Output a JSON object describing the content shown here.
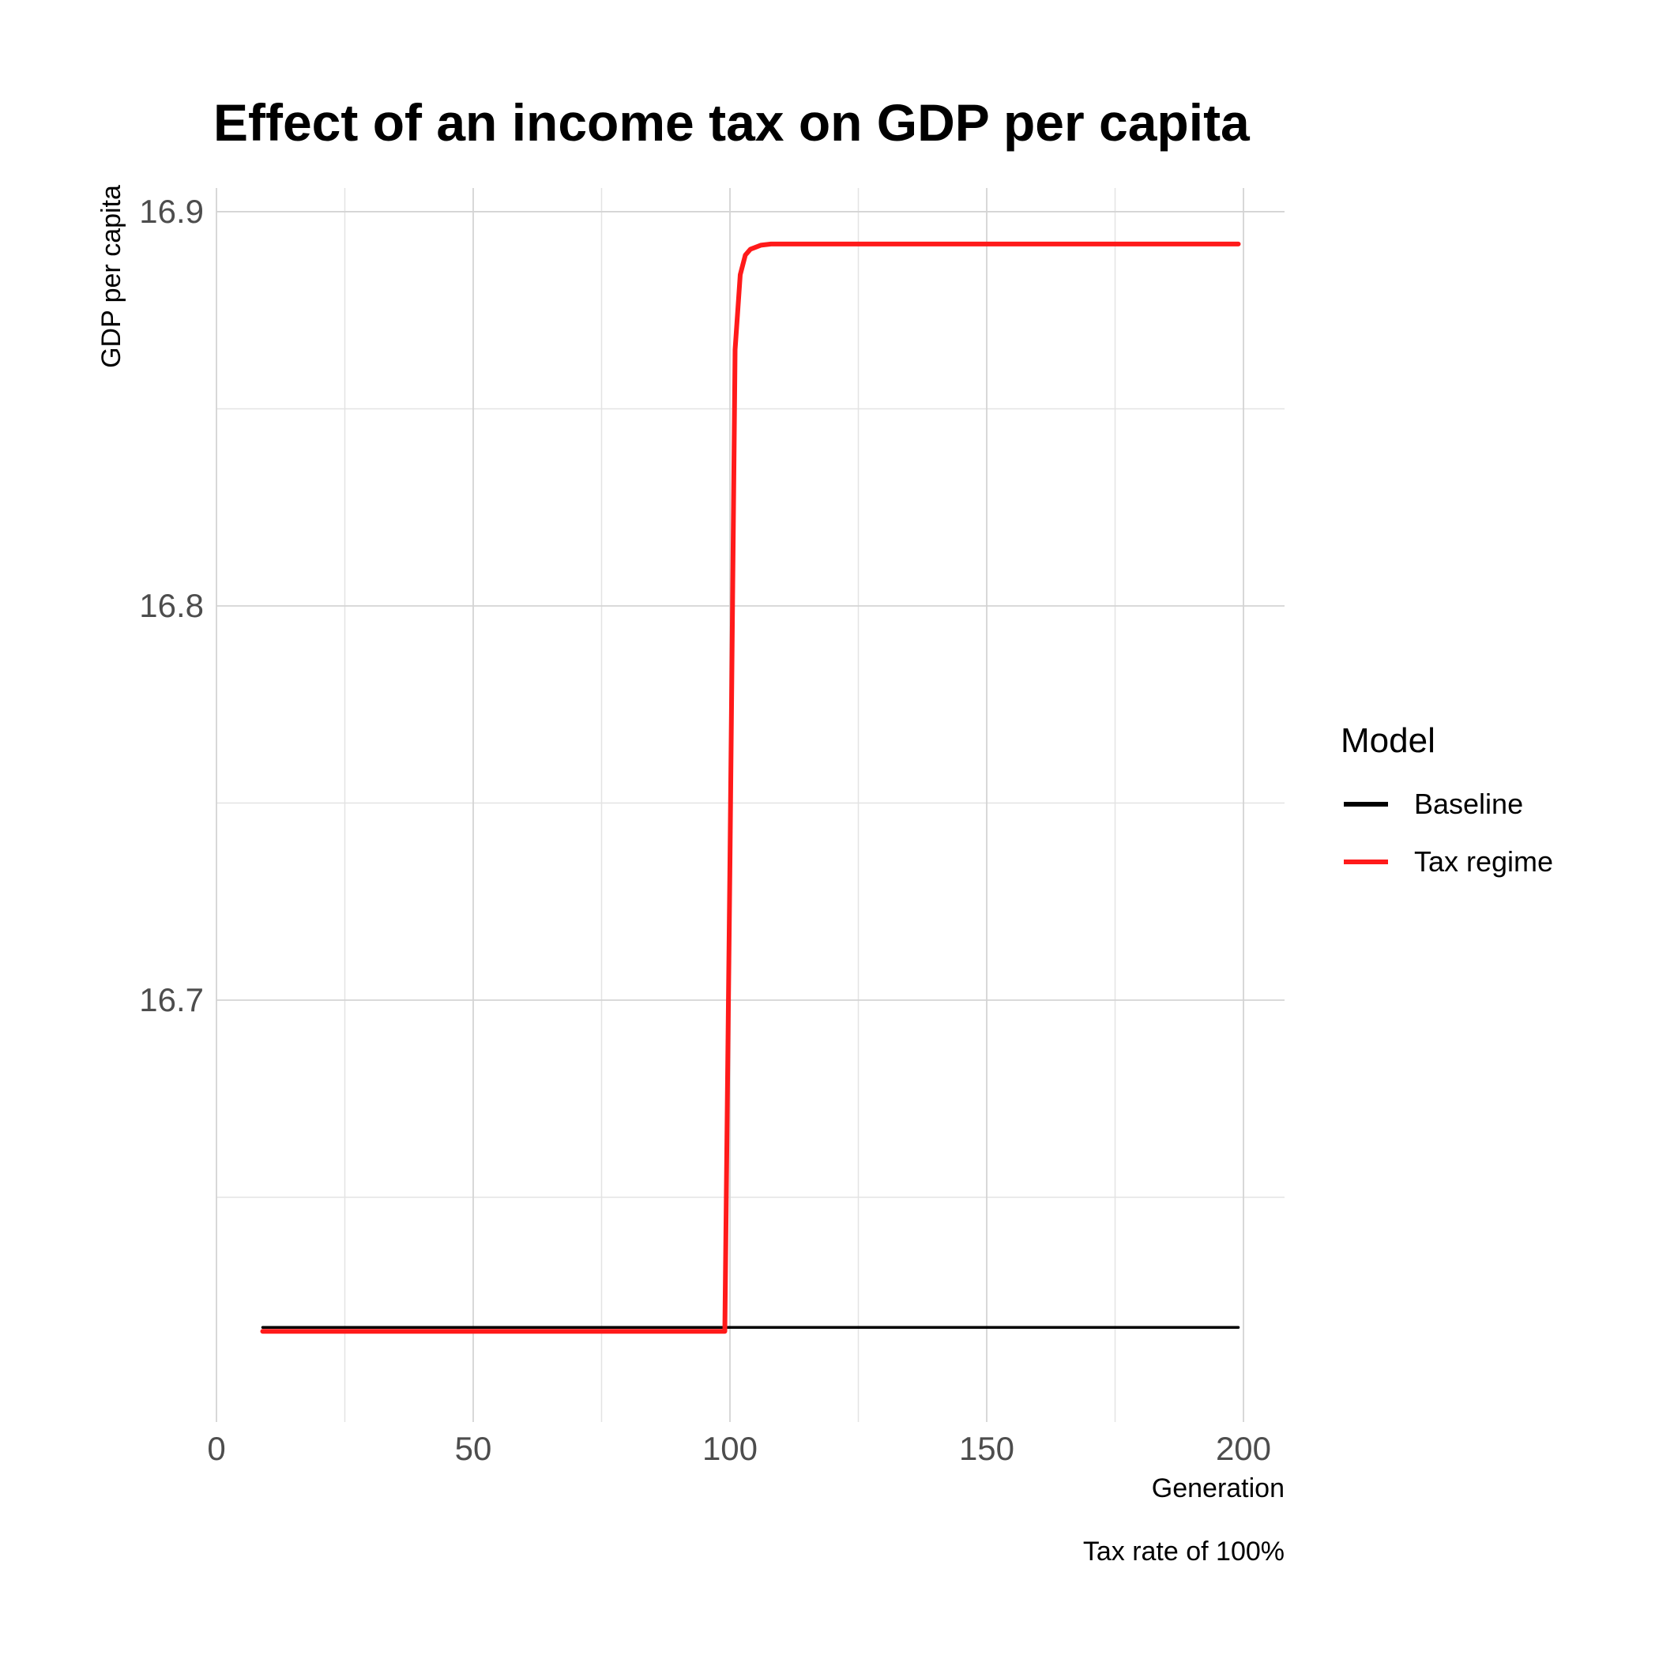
{
  "chart_data": {
    "type": "line",
    "title": "Effect of an income tax on GDP per capita",
    "xlabel": "Generation",
    "ylabel": "GDP per capita",
    "caption": "Tax rate of 100%",
    "xlim": [
      0,
      208
    ],
    "ylim": [
      16.593,
      16.906
    ],
    "x_ticks": [
      0,
      50,
      100,
      150,
      200
    ],
    "x_tick_labels": [
      "0",
      "50",
      "100",
      "150",
      "200"
    ],
    "x_minor_ticks": [
      25,
      75,
      125,
      175
    ],
    "y_ticks": [
      16.7,
      16.8,
      16.9
    ],
    "y_tick_labels": [
      "16.7",
      "16.8",
      "16.9"
    ],
    "y_minor_ticks": [
      16.65,
      16.75,
      16.85
    ],
    "grid": true,
    "legend": {
      "title": "Model",
      "placement": "right",
      "entries": [
        {
          "label": "Baseline",
          "color": "#000000"
        },
        {
          "label": "Tax regime",
          "color": "#ff1a1a"
        }
      ]
    },
    "series": [
      {
        "name": "Baseline",
        "color": "#000000",
        "x": [
          9,
          199
        ],
        "values": [
          16.617,
          16.617
        ]
      },
      {
        "name": "Tax regime",
        "color": "#ff1a1a",
        "x": [
          9,
          99,
          100,
          101,
          102,
          103,
          104,
          105,
          106,
          108,
          199
        ],
        "values": [
          16.616,
          16.616,
          16.735,
          16.865,
          16.884,
          16.889,
          16.8905,
          16.891,
          16.8915,
          16.8918,
          16.8918
        ]
      }
    ]
  }
}
